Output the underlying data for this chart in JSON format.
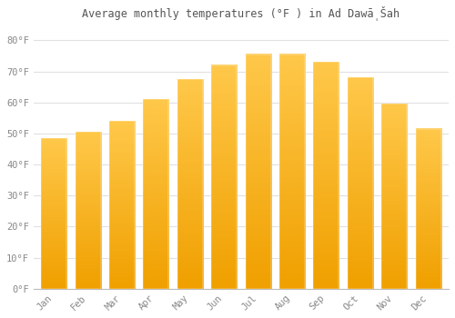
{
  "title": "Average monthly temperatures (°F ) in Ad Dawā̩Šah",
  "months": [
    "Jan",
    "Feb",
    "Mar",
    "Apr",
    "May",
    "Jun",
    "Jul",
    "Aug",
    "Sep",
    "Oct",
    "Nov",
    "Dec"
  ],
  "values": [
    48.5,
    50.5,
    54.0,
    61.0,
    67.5,
    72.0,
    75.5,
    75.5,
    73.0,
    68.0,
    59.5,
    51.5
  ],
  "bar_color_light": "#FFC84A",
  "bar_color_dark": "#F0A000",
  "background_color": "#ffffff",
  "grid_color": "#e0e0e0",
  "text_color": "#888888",
  "title_color": "#555555",
  "ylim": [
    0,
    85
  ],
  "yticks": [
    0,
    10,
    20,
    30,
    40,
    50,
    60,
    70,
    80
  ],
  "ytick_labels": [
    "0°F",
    "10°F",
    "20°F",
    "30°F",
    "40°F",
    "50°F",
    "60°F",
    "70°F",
    "80°F"
  ],
  "bar_width": 0.75,
  "figsize": [
    5.0,
    3.5
  ],
  "dpi": 100
}
